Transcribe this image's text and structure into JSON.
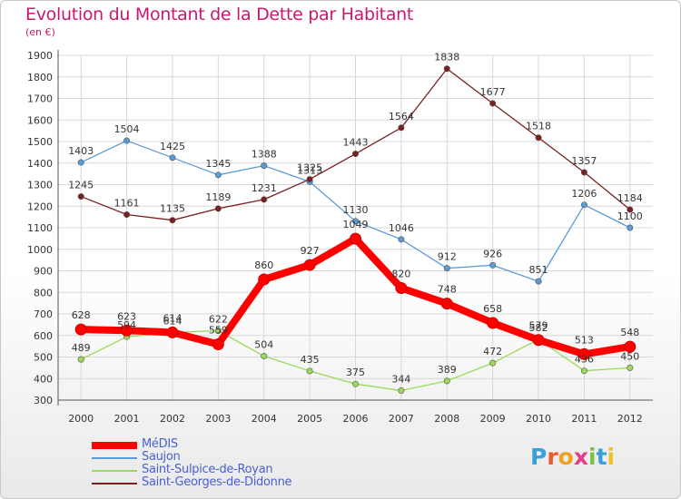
{
  "title": "Evolution du Montant de la Dette par Habitant",
  "subtitle": "(en €)",
  "chart_data": {
    "type": "line",
    "x": [
      "2000",
      "2001",
      "2002",
      "2003",
      "2004",
      "2005",
      "2006",
      "2007",
      "2008",
      "2009",
      "2010",
      "2011",
      "2012"
    ],
    "ylim": [
      300,
      1900
    ],
    "yticks": [
      300,
      400,
      500,
      600,
      700,
      800,
      900,
      1000,
      1100,
      1200,
      1300,
      1400,
      1500,
      1600,
      1700,
      1800,
      1900
    ],
    "grid": true,
    "legend_position": "bottom-left",
    "series": [
      {
        "name": "MéDIS",
        "color": "#ff0000",
        "values": [
          628,
          623,
          614,
          559,
          860,
          927,
          1049,
          820,
          748,
          658,
          579,
          513,
          548
        ]
      },
      {
        "name": "Saujon",
        "color": "#5b9bd5",
        "values": [
          1403,
          1504,
          1425,
          1345,
          1388,
          1313,
          1130,
          1046,
          912,
          926,
          851,
          1206,
          1100
        ]
      },
      {
        "name": "Saint-Sulpice-de-Royan",
        "color": "#9ad95a",
        "values": [
          489,
          594,
          614,
          622,
          504,
          435,
          375,
          344,
          389,
          472,
          582,
          436,
          450
        ]
      },
      {
        "name": "Saint-Georges-de-Didonne",
        "color": "#7a2020",
        "values": [
          1245,
          1161,
          1135,
          1189,
          1231,
          1325,
          1443,
          1564,
          1838,
          1677,
          1518,
          1357,
          1184
        ]
      }
    ]
  },
  "logo": {
    "letters": [
      "P",
      "r",
      "o",
      "x",
      "i",
      "t",
      "i"
    ],
    "colors": [
      "#3aa0d8",
      "#e85b2a",
      "#f0a020",
      "#e83a8a",
      "#7ac142",
      "#3aa0d8",
      "#f0c020"
    ]
  }
}
